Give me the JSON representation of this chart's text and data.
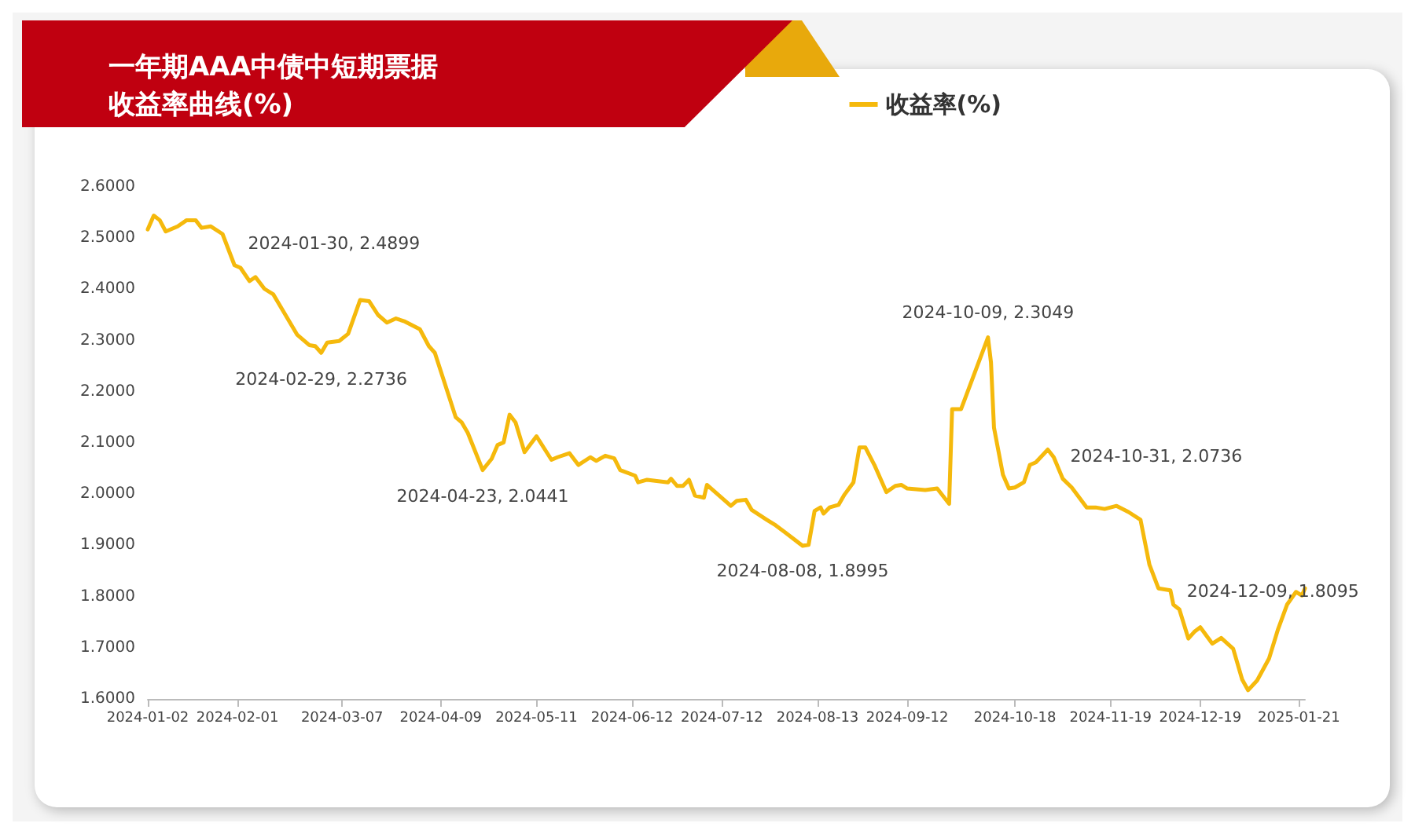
{
  "chart_data": {
    "type": "line",
    "title": "一年期AAA中债中短期票据收益率曲线(%)",
    "x": [
      "2024-01-02",
      "2024-01-04",
      "2024-01-06",
      "2024-01-08",
      "2024-01-12",
      "2024-01-15",
      "2024-01-18",
      "2024-01-20",
      "2024-01-23",
      "2024-01-27",
      "2024-01-31",
      "2024-02-02",
      "2024-02-05",
      "2024-02-07",
      "2024-02-10",
      "2024-02-13",
      "2024-02-21",
      "2024-02-25",
      "2024-02-27",
      "2024-02-29",
      "2024-03-02",
      "2024-03-06",
      "2024-03-09",
      "2024-03-13",
      "2024-03-16",
      "2024-03-19",
      "2024-03-22",
      "2024-03-25",
      "2024-03-28",
      "2024-04-02",
      "2024-04-05",
      "2024-04-07",
      "2024-04-14",
      "2024-04-16",
      "2024-04-18",
      "2024-04-23",
      "2024-04-26",
      "2024-04-28",
      "2024-04-30",
      "2024-05-02",
      "2024-05-04",
      "2024-05-07",
      "2024-05-11",
      "2024-05-16",
      "2024-05-18",
      "2024-05-22",
      "2024-05-25",
      "2024-05-29",
      "2024-05-31",
      "2024-06-03",
      "2024-06-06",
      "2024-06-08",
      "2024-06-13",
      "2024-06-14",
      "2024-06-17",
      "2024-06-24",
      "2024-06-25",
      "2024-06-27",
      "2024-06-29",
      "2024-07-01",
      "2024-07-03",
      "2024-07-06",
      "2024-07-07",
      "2024-07-15",
      "2024-07-17",
      "2024-07-20",
      "2024-07-22",
      "2024-07-27",
      "2024-07-30",
      "2024-08-02",
      "2024-08-08",
      "2024-08-10",
      "2024-08-12",
      "2024-08-14",
      "2024-08-15",
      "2024-08-17",
      "2024-08-20",
      "2024-08-22",
      "2024-08-25",
      "2024-08-27",
      "2024-08-29",
      "2024-09-01",
      "2024-09-05",
      "2024-09-08",
      "2024-09-10",
      "2024-09-12",
      "2024-09-18",
      "2024-09-22",
      "2024-09-26",
      "2024-09-27",
      "2024-09-30",
      "2024-10-09",
      "2024-10-10",
      "2024-10-11",
      "2024-10-14",
      "2024-10-16",
      "2024-10-18",
      "2024-10-21",
      "2024-10-23",
      "2024-10-25",
      "2024-10-29",
      "2024-10-31",
      "2024-11-03",
      "2024-11-06",
      "2024-11-11",
      "2024-11-14",
      "2024-11-17",
      "2024-11-21",
      "2024-11-25",
      "2024-11-29",
      "2024-12-02",
      "2024-12-05",
      "2024-12-09",
      "2024-12-10",
      "2024-12-12",
      "2024-12-15",
      "2024-12-17",
      "2024-12-19",
      "2024-12-23",
      "2024-12-26",
      "2024-12-30",
      "2025-01-02",
      "2025-01-04",
      "2025-01-07",
      "2025-01-11",
      "2025-01-14",
      "2025-01-17",
      "2025-01-20",
      "2025-01-22",
      "2025-01-23"
    ],
    "series": [
      {
        "name": "收益率(%)",
        "color": "#f5b90c",
        "values": [
          2.517,
          2.544,
          2.535,
          2.513,
          2.523,
          2.535,
          2.535,
          2.52,
          2.523,
          2.508,
          2.447,
          2.442,
          2.416,
          2.424,
          2.401,
          2.39,
          2.311,
          2.291,
          2.289,
          2.276,
          2.296,
          2.299,
          2.313,
          2.379,
          2.377,
          2.35,
          2.335,
          2.343,
          2.337,
          2.322,
          2.289,
          2.276,
          2.15,
          2.14,
          2.12,
          2.047,
          2.069,
          2.096,
          2.101,
          2.155,
          2.14,
          2.082,
          2.113,
          2.067,
          2.072,
          2.08,
          2.057,
          2.072,
          2.065,
          2.075,
          2.07,
          2.047,
          2.036,
          2.023,
          2.028,
          2.023,
          2.03,
          2.016,
          2.016,
          2.028,
          1.997,
          1.993,
          2.018,
          1.977,
          1.987,
          1.989,
          1.969,
          1.95,
          1.939,
          1.926,
          1.899,
          1.901,
          1.967,
          1.974,
          1.962,
          1.974,
          1.979,
          1.999,
          2.023,
          2.091,
          2.091,
          2.057,
          2.004,
          2.016,
          2.018,
          2.011,
          2.008,
          2.011,
          1.981,
          2.166,
          2.166,
          2.306,
          2.257,
          2.13,
          2.038,
          2.011,
          2.013,
          2.023,
          2.057,
          2.062,
          2.087,
          2.072,
          2.03,
          2.013,
          1.974,
          1.974,
          1.971,
          1.977,
          1.965,
          1.95,
          1.862,
          1.816,
          1.812,
          1.784,
          1.775,
          1.718,
          1.731,
          1.74,
          1.708,
          1.719,
          1.698,
          1.638,
          1.617,
          1.636,
          1.679,
          1.736,
          1.784,
          1.809,
          1.802,
          1.816
        ]
      }
    ],
    "xlim": [
      "2024-01-02",
      "2025-01-23"
    ],
    "xticks": [
      "2024-01-02",
      "2024-02-01",
      "2024-03-07",
      "2024-04-09",
      "2024-05-11",
      "2024-06-12",
      "2024-07-12",
      "2024-08-13",
      "2024-09-12",
      "2024-10-18",
      "2024-11-19",
      "2024-12-19",
      "2025-01-21"
    ],
    "ylim": [
      1.6,
      2.6
    ],
    "yticks": [
      {
        "value": 1.6,
        "label": "1.6000"
      },
      {
        "value": 1.7,
        "label": "1.7000"
      },
      {
        "value": 1.8,
        "label": "1.8000"
      },
      {
        "value": 1.9,
        "label": "1.9000"
      },
      {
        "value": 2.0,
        "label": "2.0000"
      },
      {
        "value": 2.1,
        "label": "2.1000"
      },
      {
        "value": 2.2,
        "label": "2.2000"
      },
      {
        "value": 2.3,
        "label": "2.3000"
      },
      {
        "value": 2.4,
        "label": "2.4000"
      },
      {
        "value": 2.5,
        "label": "2.5000"
      },
      {
        "value": 2.6,
        "label": "2.6000"
      }
    ],
    "annotations": [
      {
        "text": "2024-01-30, 2.4899",
        "x": "2024-01-30",
        "y": 2.4899
      },
      {
        "text": "2024-02-29, 2.2736",
        "x": "2024-02-29",
        "y": 2.2736
      },
      {
        "text": "2024-04-23, 2.0441",
        "x": "2024-04-23",
        "y": 2.0441
      },
      {
        "text": "2024-08-08, 1.8995",
        "x": "2024-08-08",
        "y": 1.8995
      },
      {
        "text": "2024-10-09, 2.3049",
        "x": "2024-10-09",
        "y": 2.3049
      },
      {
        "text": "2024-10-31, 2.0736",
        "x": "2024-10-31",
        "y": 2.0736
      },
      {
        "text": "2024-12-09, 1.8095",
        "x": "2024-12-09",
        "y": 1.8095
      }
    ],
    "grid": false,
    "legend": "top right",
    "marker": "none",
    "line_style": "solid"
  }
}
